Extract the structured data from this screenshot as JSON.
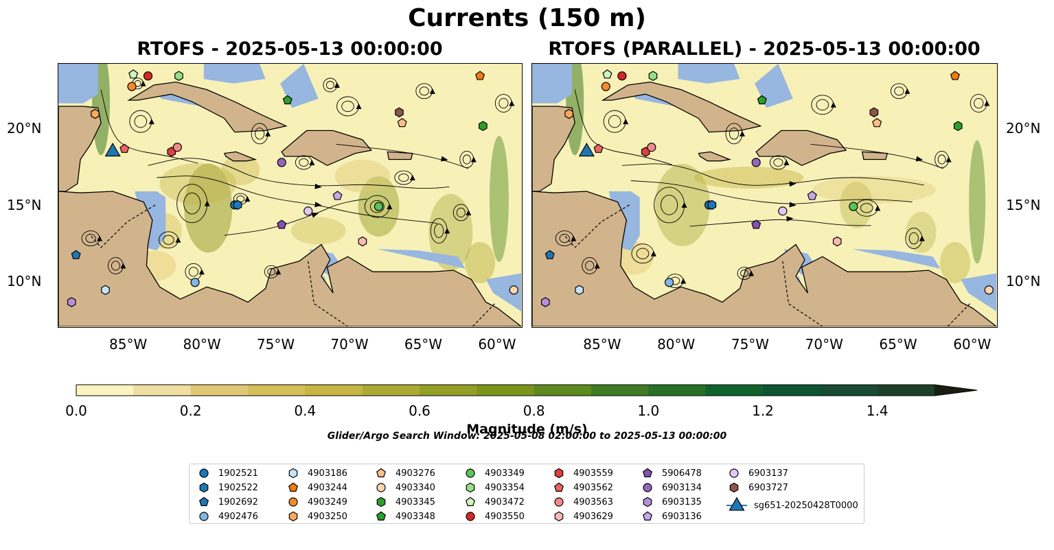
{
  "suptitle": "Currents (150 m)",
  "panels": [
    {
      "title": "RTOFS - 2025-05-13 00:00:00"
    },
    {
      "title": "RTOFS (PARALLEL) - 2025-05-13 00:00:00"
    }
  ],
  "axes": {
    "lon_ticks": [
      -85,
      -80,
      -75,
      -70,
      -65,
      -60
    ],
    "lon_labels": [
      "85°W",
      "80°W",
      "75°W",
      "70°W",
      "65°W",
      "60°W"
    ],
    "lat_ticks": [
      10,
      15,
      20
    ],
    "lat_labels": [
      "10°N",
      "15°N",
      "20°N"
    ],
    "lon_range": [
      -89.7,
      -58.2
    ],
    "lat_range": [
      7.0,
      24.3
    ]
  },
  "colorbar": {
    "label": "Magnitude (m/s)",
    "ticks": [
      "0.0",
      "0.2",
      "0.4",
      "0.6",
      "0.8",
      "1.0",
      "1.2",
      "1.4"
    ],
    "tick_values": [
      0.0,
      0.2,
      0.4,
      0.6,
      0.8,
      1.0,
      1.2,
      1.4
    ],
    "range": [
      0.0,
      1.5
    ],
    "step": 0.1,
    "extend": "max",
    "colors": [
      "#faf4c0",
      "#efdfa0",
      "#e2c875",
      "#d5be55",
      "#c6b444",
      "#aca934",
      "#939e24",
      "#7c941a",
      "#5c8a1f",
      "#3f7c24",
      "#277025",
      "#10622b",
      "#0d5530",
      "#174b33",
      "#1e3f2a"
    ]
  },
  "search_window": "Glider/Argo Search Window: 2025-05-08 02:00:00 to 2025-05-13 00:00:00",
  "map_colors": {
    "ocean_bg": "#f7f1b8",
    "land": "#d2b48c",
    "shelf": "#97b6e0",
    "coast": "#000000"
  },
  "legend": [
    {
      "label": "1902521",
      "marker": "circle",
      "color": "#1f77b4"
    },
    {
      "label": "1902522",
      "marker": "hexagon",
      "color": "#1f77b4"
    },
    {
      "label": "1902692",
      "marker": "pentagon",
      "color": "#1f77b4"
    },
    {
      "label": "4902476",
      "marker": "circle",
      "color": "#7fb8e6"
    },
    {
      "label": "4903186",
      "marker": "hexagon",
      "color": "#c6e2f7"
    },
    {
      "label": "4903244",
      "marker": "pentagon",
      "color": "#f47b12"
    },
    {
      "label": "4903249",
      "marker": "circle",
      "color": "#f5892b"
    },
    {
      "label": "4903250",
      "marker": "hexagon",
      "color": "#fba75d"
    },
    {
      "label": "4903276",
      "marker": "pentagon",
      "color": "#fbbf88"
    },
    {
      "label": "4903340",
      "marker": "circle",
      "color": "#fdd6ae"
    },
    {
      "label": "4903345",
      "marker": "hexagon",
      "color": "#2ca02c"
    },
    {
      "label": "4903348",
      "marker": "pentagon",
      "color": "#2ca02c"
    },
    {
      "label": "4903349",
      "marker": "circle",
      "color": "#5ac35a"
    },
    {
      "label": "4903354",
      "marker": "hexagon",
      "color": "#98df8a"
    },
    {
      "label": "4903472",
      "marker": "pentagon",
      "color": "#cdf4c1"
    },
    {
      "label": "4903550",
      "marker": "circle",
      "color": "#d62728"
    },
    {
      "label": "4903559",
      "marker": "hexagon",
      "color": "#de4040"
    },
    {
      "label": "4903562",
      "marker": "pentagon",
      "color": "#e96566"
    },
    {
      "label": "4903563",
      "marker": "circle",
      "color": "#f08b8b"
    },
    {
      "label": "4903629",
      "marker": "hexagon",
      "color": "#f8b8b8"
    },
    {
      "label": "5906478",
      "marker": "pentagon",
      "color": "#8451b6"
    },
    {
      "label": "6903134",
      "marker": "circle",
      "color": "#9467bd"
    },
    {
      "label": "6903135",
      "marker": "hexagon",
      "color": "#b68fd9"
    },
    {
      "label": "6903136",
      "marker": "pentagon",
      "color": "#c7a8e8"
    },
    {
      "label": "6903137",
      "marker": "circle",
      "color": "#e2c8f6"
    },
    {
      "label": "6903727",
      "marker": "hexagon",
      "color": "#8c564b"
    },
    {
      "label": "sg651-20250428T0000",
      "marker": "triangle",
      "color": "#1f77b4"
    }
  ],
  "markers": [
    {
      "id": "1902521",
      "lon": -77.7,
      "lat": 15.0
    },
    {
      "id": "1902522",
      "lon": -77.5,
      "lat": 15.0
    },
    {
      "id": "1902692",
      "lon": -88.5,
      "lat": 11.7
    },
    {
      "id": "4902476",
      "lon": -80.4,
      "lat": 9.9
    },
    {
      "id": "4903186",
      "lon": -86.5,
      "lat": 9.4
    },
    {
      "id": "4903244",
      "lon": -61.0,
      "lat": 23.5
    },
    {
      "id": "4903249",
      "lon": -84.7,
      "lat": 22.8
    },
    {
      "id": "4903250",
      "lon": -87.2,
      "lat": 21.0
    },
    {
      "id": "4903276",
      "lon": -66.3,
      "lat": 20.4
    },
    {
      "id": "4903340",
      "lon": -58.7,
      "lat": 9.4
    },
    {
      "id": "4903345",
      "lon": -60.8,
      "lat": 20.2
    },
    {
      "id": "4903348",
      "lon": -74.1,
      "lat": 21.9
    },
    {
      "id": "4903349",
      "lon": -67.9,
      "lat": 14.9
    },
    {
      "id": "4903354",
      "lon": -81.5,
      "lat": 23.5
    },
    {
      "id": "4903472",
      "lon": -84.6,
      "lat": 23.6
    },
    {
      "id": "4903550",
      "lon": -83.6,
      "lat": 23.5
    },
    {
      "id": "4903559",
      "lon": -82.0,
      "lat": 18.5
    },
    {
      "id": "4903562",
      "lon": -85.2,
      "lat": 18.7
    },
    {
      "id": "4903563",
      "lon": -81.6,
      "lat": 18.8
    },
    {
      "id": "4903629",
      "lon": -69.0,
      "lat": 12.6
    },
    {
      "id": "5906478",
      "lon": -74.5,
      "lat": 13.7
    },
    {
      "id": "6903134",
      "lon": -74.5,
      "lat": 17.8
    },
    {
      "id": "6903135",
      "lon": -88.8,
      "lat": 8.6
    },
    {
      "id": "6903136",
      "lon": -70.7,
      "lat": 15.6
    },
    {
      "id": "6903137",
      "lon": -72.7,
      "lat": 14.6
    },
    {
      "id": "6903727",
      "lon": -66.5,
      "lat": 21.1
    },
    {
      "id": "sg651-20250428T0000",
      "lon": -86.0,
      "lat": 18.5
    }
  ]
}
